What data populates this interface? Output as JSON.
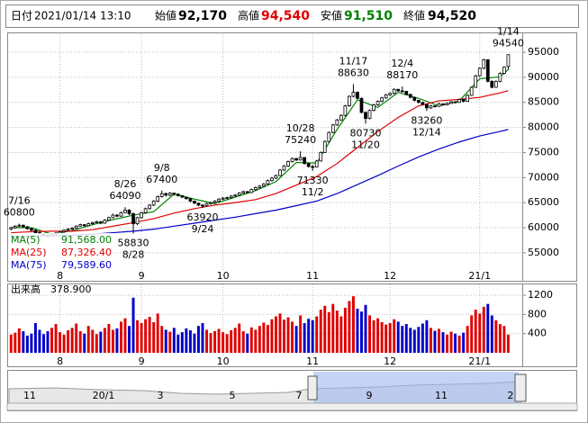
{
  "header": {
    "date_label": "日付",
    "date": "2021/01/14 13:10",
    "open_label": "始値",
    "open": {
      "value": 92170,
      "label": "92,170"
    },
    "high_label": "高値",
    "high": {
      "value": 94540,
      "label": "94,540"
    },
    "low_label": "安値",
    "low": {
      "value": 91510,
      "label": "91,510"
    },
    "close_label": "終値",
    "close": {
      "value": 94520,
      "label": "94,520"
    }
  },
  "chart_data": {
    "type": "candlestick",
    "xlim": [
      -0.5,
      125
    ],
    "xticks": [
      {
        "value": 12,
        "label": "8"
      },
      {
        "value": 32,
        "label": "9"
      },
      {
        "value": 52,
        "label": "10"
      },
      {
        "value": 74,
        "label": "11"
      },
      {
        "value": 93,
        "label": "12"
      },
      {
        "value": 115,
        "label": "21/1"
      }
    ],
    "ylim": [
      51200,
      98600
    ],
    "yticks": [
      55000,
      60000,
      65000,
      70000,
      75000,
      80000,
      85000,
      90000,
      95000
    ],
    "grid": true,
    "candle_colors": {
      "up": "#ffffff",
      "down": "#000000"
    },
    "ohlc": [
      [
        59700,
        60200,
        59500,
        60000
      ],
      [
        60000,
        60500,
        59800,
        60300
      ],
      [
        60400,
        60800,
        60100,
        60500
      ],
      [
        60500,
        60600,
        60000,
        60200
      ],
      [
        60200,
        60300,
        59600,
        59800
      ],
      [
        59800,
        59900,
        59300,
        59500
      ],
      [
        59500,
        59600,
        58800,
        59000
      ],
      [
        59000,
        59200,
        58600,
        58800
      ],
      [
        58800,
        58900,
        58300,
        58500
      ],
      [
        58500,
        58700,
        58000,
        58300
      ],
      [
        58300,
        58800,
        58200,
        58600
      ],
      [
        58600,
        59100,
        58400,
        58900
      ],
      [
        58900,
        59400,
        58800,
        59200
      ],
      [
        59200,
        59700,
        59000,
        59500
      ],
      [
        59500,
        59900,
        59300,
        59700
      ],
      [
        59700,
        60100,
        59500,
        59900
      ],
      [
        59900,
        60500,
        59800,
        60300
      ],
      [
        60300,
        60800,
        60200,
        60600
      ],
      [
        60600,
        60700,
        60200,
        60400
      ],
      [
        60400,
        61000,
        60300,
        60800
      ],
      [
        60800,
        61200,
        60600,
        61000
      ],
      [
        61000,
        61400,
        60900,
        61200
      ],
      [
        61200,
        61300,
        60700,
        60900
      ],
      [
        60900,
        61700,
        60800,
        61500
      ],
      [
        61500,
        62200,
        61400,
        62000
      ],
      [
        62000,
        62800,
        61900,
        62500
      ],
      [
        62500,
        62700,
        62100,
        62300
      ],
      [
        62300,
        63200,
        62200,
        63000
      ],
      [
        63000,
        64090,
        62900,
        63500
      ],
      [
        63500,
        63700,
        62500,
        62800
      ],
      [
        62800,
        63000,
        58830,
        60800
      ],
      [
        60800,
        62200,
        60500,
        62000
      ],
      [
        62000,
        63200,
        61800,
        63000
      ],
      [
        63000,
        64000,
        62800,
        63800
      ],
      [
        63800,
        64700,
        63600,
        64500
      ],
      [
        64500,
        65500,
        64300,
        65300
      ],
      [
        65300,
        66400,
        65100,
        66200
      ],
      [
        66200,
        67400,
        66000,
        66800
      ],
      [
        66800,
        67000,
        66200,
        66500
      ],
      [
        66500,
        67100,
        66300,
        66900
      ],
      [
        66900,
        67000,
        66400,
        66700
      ],
      [
        66700,
        66800,
        66200,
        66400
      ],
      [
        66400,
        66500,
        65900,
        66100
      ],
      [
        66100,
        66200,
        65600,
        65800
      ],
      [
        65800,
        65900,
        65100,
        65300
      ],
      [
        65300,
        65400,
        64700,
        64900
      ],
      [
        64900,
        65000,
        64300,
        64500
      ],
      [
        64500,
        64700,
        63920,
        64400
      ],
      [
        64400,
        65000,
        64200,
        64800
      ],
      [
        64800,
        65200,
        64600,
        65000
      ],
      [
        65000,
        65500,
        64800,
        65300
      ],
      [
        65300,
        65900,
        65100,
        65700
      ],
      [
        65700,
        66100,
        65500,
        65900
      ],
      [
        65900,
        66200,
        65700,
        66000
      ],
      [
        66000,
        66500,
        65800,
        66300
      ],
      [
        66300,
        66700,
        66100,
        66500
      ],
      [
        66500,
        67100,
        66300,
        66900
      ],
      [
        66900,
        67400,
        66700,
        67200
      ],
      [
        67200,
        67300,
        66800,
        67000
      ],
      [
        67000,
        67800,
        66900,
        67600
      ],
      [
        67600,
        68200,
        67400,
        68000
      ],
      [
        68000,
        68500,
        67800,
        68300
      ],
      [
        68300,
        68900,
        68100,
        68700
      ],
      [
        68700,
        69600,
        68500,
        69400
      ],
      [
        69400,
        70100,
        69200,
        69900
      ],
      [
        69900,
        70600,
        69700,
        70400
      ],
      [
        70400,
        71700,
        70300,
        71500
      ],
      [
        71500,
        72500,
        71300,
        72300
      ],
      [
        72300,
        73400,
        72100,
        73200
      ],
      [
        73200,
        74000,
        73000,
        73800
      ],
      [
        73800,
        73900,
        73300,
        73500
      ],
      [
        73500,
        75240,
        73400,
        74000
      ],
      [
        74000,
        74100,
        72600,
        72800
      ],
      [
        72800,
        72900,
        72000,
        72200
      ],
      [
        72200,
        72500,
        71330,
        72100
      ],
      [
        72100,
        73500,
        72000,
        73300
      ],
      [
        73300,
        75200,
        73200,
        75000
      ],
      [
        75000,
        77400,
        74900,
        77200
      ],
      [
        77200,
        79200,
        77000,
        79000
      ],
      [
        79000,
        80700,
        78800,
        80500
      ],
      [
        80500,
        81700,
        80300,
        81500
      ],
      [
        81500,
        82600,
        81300,
        82400
      ],
      [
        82400,
        84500,
        82200,
        84300
      ],
      [
        84300,
        86400,
        84100,
        86200
      ],
      [
        86200,
        88630,
        86000,
        87000
      ],
      [
        87000,
        87200,
        85600,
        85800
      ],
      [
        85800,
        86000,
        82800,
        83000
      ],
      [
        83000,
        83200,
        80730,
        81800
      ],
      [
        81800,
        83600,
        81600,
        83400
      ],
      [
        83400,
        84700,
        83200,
        84500
      ],
      [
        84500,
        85400,
        84300,
        85200
      ],
      [
        85200,
        86100,
        85000,
        85900
      ],
      [
        85900,
        86700,
        85700,
        86500
      ],
      [
        86500,
        87000,
        86300,
        86800
      ],
      [
        86800,
        87800,
        86600,
        87600
      ],
      [
        87600,
        87700,
        87100,
        87300
      ],
      [
        87300,
        88170,
        87000,
        87200
      ],
      [
        87200,
        87300,
        86400,
        86600
      ],
      [
        86600,
        86700,
        85800,
        86000
      ],
      [
        86000,
        86100,
        85200,
        85400
      ],
      [
        85400,
        85500,
        84800,
        85000
      ],
      [
        85000,
        85100,
        84400,
        84600
      ],
      [
        84600,
        84700,
        83260,
        83900
      ],
      [
        83900,
        84500,
        83700,
        84300
      ],
      [
        84300,
        84400,
        84000,
        84200
      ],
      [
        84200,
        84900,
        84100,
        84700
      ],
      [
        84700,
        84800,
        84300,
        84500
      ],
      [
        84500,
        85000,
        84400,
        84800
      ],
      [
        84800,
        85300,
        84700,
        85100
      ],
      [
        85100,
        85200,
        84800,
        85000
      ],
      [
        85000,
        85800,
        84900,
        85600
      ],
      [
        85600,
        85700,
        85000,
        85200
      ],
      [
        85200,
        86600,
        85100,
        86400
      ],
      [
        86400,
        88200,
        86300,
        88000
      ],
      [
        88000,
        90500,
        87900,
        90300
      ],
      [
        90300,
        92000,
        90100,
        91800
      ],
      [
        91800,
        93700,
        91600,
        93500
      ],
      [
        93500,
        93600,
        89000,
        89200
      ],
      [
        89200,
        89400,
        87800,
        88000
      ],
      [
        88000,
        89400,
        87900,
        89200
      ],
      [
        89200,
        91000,
        89000,
        90800
      ],
      [
        90800,
        92200,
        90600,
        92000
      ],
      [
        92170,
        94540,
        91510,
        94520
      ]
    ],
    "annotations": [
      {
        "date": "7/16",
        "value": 60800,
        "candle": 2,
        "kind": "high"
      },
      {
        "date": "8/26",
        "value": 64090,
        "candle": 28,
        "kind": "high"
      },
      {
        "date": "8/28",
        "value": 58830,
        "candle": 30,
        "kind": "low"
      },
      {
        "date": "9/8",
        "value": 67400,
        "candle": 37,
        "kind": "high"
      },
      {
        "date": "9/24",
        "value": 63920,
        "candle": 47,
        "kind": "low"
      },
      {
        "date": "10/28",
        "value": 75240,
        "candle": 71,
        "kind": "high"
      },
      {
        "date": "11/2",
        "value": 71330,
        "candle": 74,
        "kind": "low"
      },
      {
        "date": "11/17",
        "value": 88630,
        "candle": 84,
        "kind": "high"
      },
      {
        "date": "11/20",
        "value": 80730,
        "candle": 87,
        "kind": "low"
      },
      {
        "date": "12/4",
        "value": 88170,
        "candle": 96,
        "kind": "high"
      },
      {
        "date": "12/14",
        "value": 83260,
        "candle": 102,
        "kind": "low"
      },
      {
        "date": "1/14",
        "value": 94540,
        "candle": 122,
        "kind": "high"
      }
    ],
    "series": [
      {
        "name": "MA(5)",
        "color": "#008000",
        "last": {
          "value": 91568,
          "label": "91,568.00"
        },
        "x": [
          0,
          5,
          10,
          15,
          20,
          25,
          30,
          35,
          40,
          45,
          50,
          55,
          60,
          65,
          70,
          75,
          80,
          85,
          90,
          95,
          100,
          105,
          110,
          115,
          120,
          122
        ],
        "values": [
          60000,
          60000,
          58700,
          59400,
          60600,
          61600,
          62500,
          63200,
          66700,
          65700,
          64800,
          66100,
          67400,
          69200,
          73000,
          72900,
          79600,
          85500,
          84000,
          87000,
          85800,
          84300,
          85300,
          89700,
          90100,
          91568
        ]
      },
      {
        "name": "MA(25)",
        "color": "#e00000",
        "last": {
          "value": 87326.4,
          "label": "87,326.40"
        },
        "x": [
          0,
          5,
          10,
          15,
          20,
          25,
          30,
          35,
          40,
          45,
          50,
          55,
          60,
          65,
          70,
          75,
          80,
          85,
          90,
          95,
          100,
          105,
          110,
          115,
          120,
          122
        ],
        "values": [
          59000,
          59200,
          59300,
          59300,
          59600,
          60300,
          61000,
          61800,
          62900,
          63800,
          64500,
          65000,
          65600,
          66800,
          68500,
          70200,
          72800,
          76000,
          79200,
          82000,
          84300,
          85300,
          85600,
          86000,
          86900,
          87326.4
        ]
      },
      {
        "name": "MA(75)",
        "color": "#0000c8",
        "last": {
          "value": 79589.6,
          "label": "79,589.60"
        },
        "x": [
          0,
          5,
          10,
          15,
          20,
          25,
          30,
          35,
          40,
          45,
          50,
          55,
          60,
          65,
          70,
          75,
          80,
          85,
          90,
          95,
          100,
          105,
          110,
          115,
          120,
          122
        ],
        "values": [
          58200,
          58300,
          58400,
          58500,
          58700,
          59000,
          59300,
          59700,
          60300,
          60900,
          61500,
          62100,
          62800,
          63500,
          64400,
          65300,
          66800,
          68600,
          70400,
          72300,
          74100,
          75700,
          77100,
          78300,
          79200,
          79589.6
        ]
      }
    ],
    "volume": {
      "name": "出来高",
      "last": {
        "value": 378.9,
        "label": "378.900"
      },
      "ylim": [
        0,
        1390
      ],
      "yticks": [
        400,
        800,
        1200
      ],
      "up_color": "#e00000",
      "down_color": "#0000c8",
      "values": [
        380,
        420,
        510,
        450,
        360,
        400,
        620,
        480,
        390,
        450,
        520,
        600,
        430,
        380,
        470,
        520,
        610,
        450,
        400,
        560,
        480,
        390,
        440,
        520,
        600,
        480,
        510,
        650,
        720,
        560,
        1150,
        680,
        620,
        700,
        750,
        640,
        820,
        560,
        480,
        440,
        520,
        380,
        430,
        510,
        470,
        400,
        560,
        620,
        480,
        410,
        450,
        500,
        430,
        390,
        470,
        520,
        610,
        450,
        400,
        530,
        480,
        560,
        630,
        580,
        700,
        760,
        820,
        690,
        740,
        650,
        560,
        780,
        620,
        710,
        680,
        760,
        900,
        980,
        850,
        1020,
        880,
        760,
        940,
        1080,
        1180,
        920,
        860,
        1000,
        780,
        680,
        720,
        640,
        590,
        620,
        700,
        650,
        560,
        600,
        520,
        480,
        540,
        610,
        680,
        520,
        460,
        500,
        430,
        380,
        440,
        400,
        360,
        420,
        560,
        780,
        900,
        820,
        960,
        1020,
        780,
        680,
        600,
        560,
        378.9
      ]
    }
  },
  "navigator": {
    "labels": [
      "11",
      "20/1",
      "3",
      "5",
      "7",
      "9",
      "11",
      "2"
    ]
  }
}
